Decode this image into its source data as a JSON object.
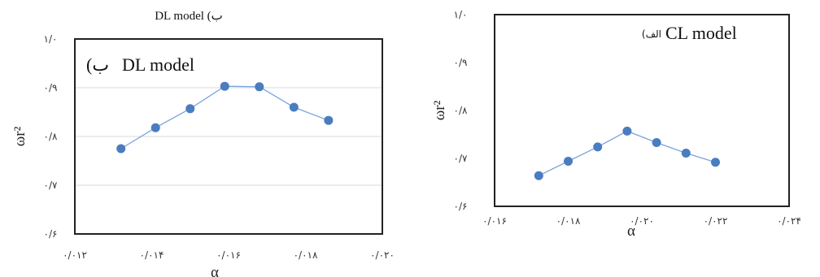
{
  "chart_data": [
    {
      "type": "line",
      "caption": "DL model (ب",
      "annotation": {
        "model": "DL model",
        "letter": "(ب"
      },
      "ylabel": "ωr²",
      "xlabel": "α",
      "xlim": [
        0.012,
        0.02
      ],
      "ylim": [
        0.6,
        1.0
      ],
      "x_ticks": [
        "۰/۰۱۲",
        "۰/۰۱۴",
        "۰/۰۱۶",
        "۰/۰۱۸",
        "۰/۰۲۰"
      ],
      "y_ticks": [
        "۰/۶",
        "۰/۷",
        "۰/۸",
        "۰/۹",
        "۱/۰"
      ],
      "grid": "horizontal",
      "series": [
        {
          "x": [
            0.0132,
            0.0141,
            0.015,
            0.0159,
            0.0168,
            0.0177,
            0.0186
          ],
          "y": [
            0.775,
            0.818,
            0.857,
            0.903,
            0.902,
            0.86,
            0.833
          ]
        }
      ]
    },
    {
      "type": "line",
      "annotation": {
        "model": "CL model",
        "letter": "(الف"
      },
      "ylabel": "ωr²",
      "xlabel": "α",
      "xlim": [
        0.016,
        0.024
      ],
      "ylim": [
        0.6,
        1.0
      ],
      "x_ticks": [
        "۰/۰۱۶",
        "۰/۰۱۸",
        "۰/۰۲۰",
        "۰/۰۲۲",
        "۰/۰۲۴"
      ],
      "y_ticks": [
        "۰/۶",
        "۰/۷",
        "۰/۸",
        "۰/۹",
        "۱/۰"
      ],
      "grid": "none",
      "series": [
        {
          "x": [
            0.0172,
            0.018,
            0.0188,
            0.0196,
            0.0204,
            0.0212,
            0.022
          ],
          "y": [
            0.664,
            0.694,
            0.724,
            0.757,
            0.733,
            0.711,
            0.692
          ]
        }
      ]
    }
  ],
  "colors": {
    "line": "#7ba3dd",
    "marker": "#4a7cc0",
    "frame": "#222222",
    "grid": "#d9d9d9"
  }
}
